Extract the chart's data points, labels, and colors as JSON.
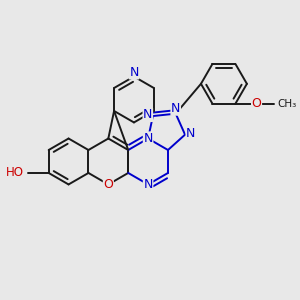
{
  "bg_color": "#e8e8e8",
  "bc": "#1a1a1a",
  "blue": "#0000cc",
  "red": "#cc0000",
  "lw": 1.4,
  "dbo": 0.012,
  "atoms": {
    "N_py": "N",
    "O_ho": "O",
    "O_ring": "O",
    "O_meo": "O"
  },
  "figsize": [
    3.0,
    3.0
  ],
  "dpi": 100
}
